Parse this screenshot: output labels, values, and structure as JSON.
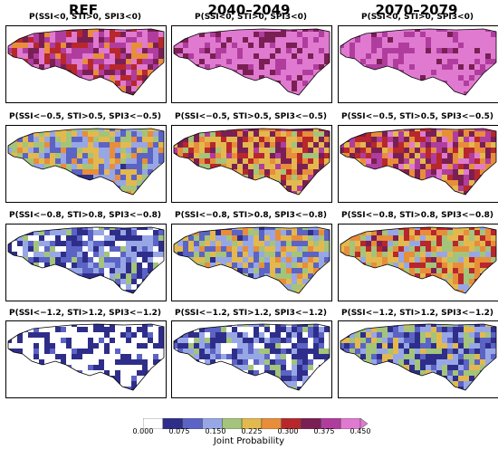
{
  "columns": [
    "REF",
    "2040–2049",
    "2070–2079"
  ],
  "rows": [
    {
      "titles": [
        "P(SSI<0, STI>0, SPI3<0)",
        "P(SSI<0, STI>0, SPI3<0)",
        "P(SSI<0, STI>0, SPI3<0)"
      ],
      "levels": [
        0.33,
        0.4,
        0.42
      ]
    },
    {
      "titles": [
        "P(SSI<−0.5, STI>0.5, SPI3<−0.5)",
        "P(SSI<−0.5, STI>0.5, SPI3<−0.5)",
        "P(SSI<−0.5, STI>0.5, SPI3<−0.5)"
      ],
      "levels": [
        0.16,
        0.26,
        0.3
      ]
    },
    {
      "titles": [
        "P(SSI<−0.8, STI>0.8, SPI3<−0.8)",
        "P(SSI<−0.8, STI>0.8, SPI3<−0.8)",
        "P(SSI<−0.8, STI>0.8, SPI3<−0.8)"
      ],
      "levels": [
        0.08,
        0.16,
        0.22
      ]
    },
    {
      "titles": [
        "P(SSI<−1.2, STI>1.2, SPI3<−1.2)",
        "P(SSI<−1.2, STI>1.2, SPI3<−1.2)",
        "P(SSI<−1.2, STI>1.2, SPI3<−1.2)"
      ],
      "levels": [
        0.0,
        0.08,
        0.13
      ]
    }
  ],
  "colorbar": {
    "label": "Joint Probability",
    "ticks": [
      "0.000",
      "0.075",
      "0.150",
      "0.225",
      "0.300",
      "0.375",
      "0.450"
    ],
    "colors": [
      "#ffffff",
      "#2e2e8a",
      "#5b63c4",
      "#97a7e6",
      "#a3c47a",
      "#e3b94f",
      "#e88d3a",
      "#b8272b",
      "#7a1f54",
      "#b03d9e",
      "#e07ad0"
    ]
  }
}
